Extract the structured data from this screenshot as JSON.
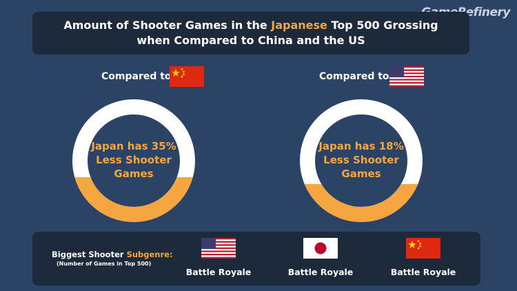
{
  "logo": "GameRefinery",
  "title": {
    "line1_a": "Amount of Shooter Games in the ",
    "line1_accent": "Japanese",
    "line1_b": " Top 500 Grossing",
    "line2": "when Compared to China and the US"
  },
  "comparisons": [
    {
      "label": "Compared to",
      "flag": "china-flag",
      "ring_text_1": "Japan has 35%",
      "ring_text_2": "Less Shooter",
      "ring_text_3": "Games",
      "fill_fraction": 0.35
    },
    {
      "label": "Compared to",
      "flag": "us-flag",
      "ring_text_1": "Japan has 18%",
      "ring_text_2": "Less Shooter",
      "ring_text_3": "Games",
      "fill_fraction": 0.18
    }
  ],
  "bottom": {
    "label_a": "Biggest Shooter ",
    "label_accent": "Subgenre:",
    "note": "(Number of Games in Top 500)",
    "items": [
      {
        "flag": "us-flag",
        "text": "Battle Royale"
      },
      {
        "flag": "japan-flag",
        "text": "Battle Royale"
      },
      {
        "flag": "china-flag",
        "text": "Battle Royale"
      }
    ]
  },
  "colors": {
    "background": "#2b4466",
    "panel": "#1c2a3c",
    "accent": "#f5a640",
    "ring_white": "#ffffff"
  }
}
